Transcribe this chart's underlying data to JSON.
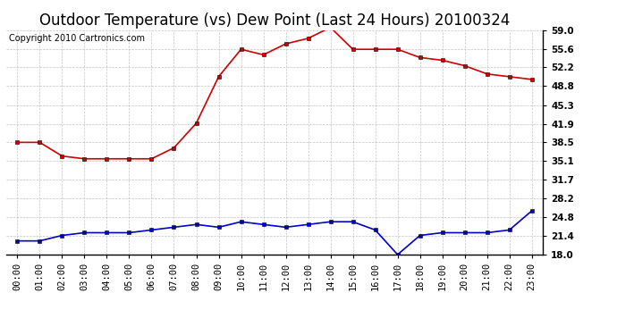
{
  "title": "Outdoor Temperature (vs) Dew Point (Last 24 Hours) 20100324",
  "copyright": "Copyright 2010 Cartronics.com",
  "hours": [
    "00:00",
    "01:00",
    "02:00",
    "03:00",
    "04:00",
    "05:00",
    "06:00",
    "07:00",
    "08:00",
    "09:00",
    "10:00",
    "11:00",
    "12:00",
    "13:00",
    "14:00",
    "15:00",
    "16:00",
    "17:00",
    "18:00",
    "19:00",
    "20:00",
    "21:00",
    "22:00",
    "23:00"
  ],
  "temp": [
    38.5,
    38.5,
    36.0,
    35.5,
    35.5,
    35.5,
    35.5,
    37.5,
    42.0,
    50.5,
    55.5,
    54.5,
    56.5,
    57.5,
    59.5,
    55.5,
    55.5,
    55.5,
    54.0,
    53.5,
    52.5,
    51.0,
    50.5,
    50.0
  ],
  "dew": [
    20.5,
    20.5,
    21.5,
    22.0,
    22.0,
    22.0,
    22.5,
    23.0,
    23.5,
    23.0,
    24.0,
    23.5,
    23.0,
    23.5,
    24.0,
    24.0,
    22.5,
    18.0,
    21.5,
    22.0,
    22.0,
    22.0,
    22.5,
    26.0
  ],
  "temp_color": "#cc0000",
  "dew_color": "#0000cc",
  "bg_color": "#ffffff",
  "grid_color": "#aaaaaa",
  "ylim_min": 18.0,
  "ylim_max": 59.0,
  "yticks": [
    18.0,
    21.4,
    24.8,
    28.2,
    31.7,
    35.1,
    38.5,
    41.9,
    45.3,
    48.8,
    52.2,
    55.6,
    59.0
  ],
  "title_fontsize": 12,
  "copyright_fontsize": 7,
  "tick_fontsize": 7.5,
  "marker": "s",
  "marker_size": 2.5,
  "line_width": 1.2
}
